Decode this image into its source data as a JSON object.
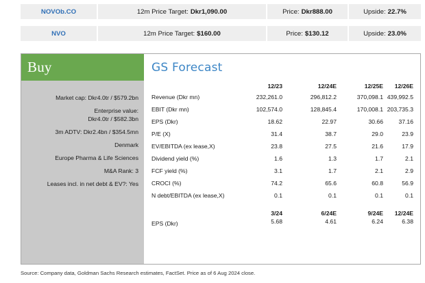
{
  "tickers": [
    {
      "symbol": "NOVOb.CO",
      "target_label": "12m Price Target:",
      "target_value": "Dkr1,090.00",
      "price_label": "Price:",
      "price_value": "Dkr888.00",
      "upside_label": "Upside:",
      "upside_value": "22.7%"
    },
    {
      "symbol": "NVO",
      "target_label": "12m Price Target:",
      "target_value": "$160.00",
      "price_label": "Price:",
      "price_value": "$130.12",
      "upside_label": "Upside:",
      "upside_value": "23.0%"
    }
  ],
  "rating": "Buy",
  "left_items": [
    "Market cap: Dkr4.0tr / $579.2bn",
    "Enterprise value:",
    "Dkr4.0tr / $582.3bn",
    "3m ADTV: Dkr2.4bn / $354.5mn",
    "Denmark",
    "Europe Pharma & Life Sciences",
    "M&A Rank: 3",
    "Leases incl. in net debt & EV?: Yes"
  ],
  "forecast": {
    "title": "GS Forecast",
    "columns": [
      "12/23",
      "12/24E",
      "12/25E",
      "12/26E"
    ],
    "rows": [
      {
        "label": "Revenue (Dkr mn)",
        "values": [
          "232,261.0",
          "296,812.2",
          "370,098.1",
          "439,992.5"
        ]
      },
      {
        "label": "EBIT (Dkr mn)",
        "values": [
          "102,574.0",
          "128,845.4",
          "170,008.1",
          "203,735.3"
        ]
      },
      {
        "label": "EPS (Dkr)",
        "values": [
          "18.62",
          "22.97",
          "30.66",
          "37.16"
        ]
      },
      {
        "label": "P/E (X)",
        "values": [
          "31.4",
          "38.7",
          "29.0",
          "23.9"
        ]
      },
      {
        "label": "EV/EBITDA (ex lease,X)",
        "values": [
          "23.8",
          "27.5",
          "21.6",
          "17.9"
        ]
      },
      {
        "label": "Dividend yield (%)",
        "values": [
          "1.6",
          "1.3",
          "1.7",
          "2.1"
        ]
      },
      {
        "label": "FCF yield (%)",
        "values": [
          "3.1",
          "1.7",
          "2.1",
          "2.9"
        ]
      },
      {
        "label": "CROCI (%)",
        "values": [
          "74.2",
          "65.6",
          "60.8",
          "56.9"
        ]
      },
      {
        "label": "N debt/EBITDA (ex lease,X)",
        "values": [
          "0.1",
          "0.1",
          "0.1",
          "0.1"
        ]
      }
    ],
    "quarterly_columns": [
      "3/24",
      "6/24E",
      "9/24E",
      "12/24E"
    ],
    "quarterly_row": {
      "label": "EPS (Dkr)",
      "values": [
        "5.68",
        "4.61",
        "6.24",
        "6.38"
      ]
    }
  },
  "source": "Source: Company data, Goldman Sachs Research estimates, FactSet. Price as of 6 Aug 2024 close."
}
